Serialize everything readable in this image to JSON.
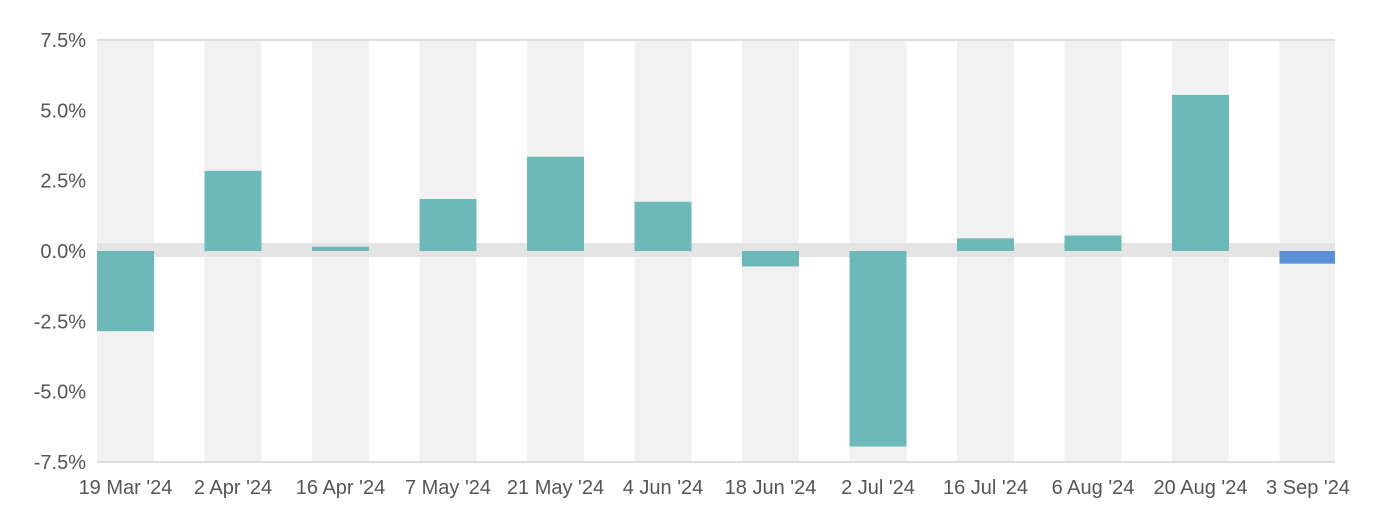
{
  "chart_data": {
    "type": "bar",
    "title": "",
    "xlabel": "",
    "ylabel": "",
    "categories": [
      "19 Mar '24",
      "2 Apr '24",
      "16 Apr '24",
      "7 May '24",
      "21 May '24",
      "4 Jun '24",
      "18 Jun '24",
      "2 Jul '24",
      "16 Jul '24",
      "6 Aug '24",
      "20 Aug '24",
      "3 Sep '24"
    ],
    "values": [
      -2.85,
      2.85,
      0.15,
      1.85,
      3.35,
      1.75,
      -0.55,
      -6.95,
      0.45,
      0.55,
      5.55,
      -0.45
    ],
    "ylim": [
      -7.5,
      7.5
    ],
    "yticks": [
      7.5,
      5.0,
      2.5,
      0.0,
      -2.5,
      -5.0,
      -7.5
    ],
    "ytick_labels": [
      "7.5%",
      "5.0%",
      "2.5%",
      "0.0%",
      "-2.5%",
      "-5.0%",
      "-7.5%"
    ],
    "grid": false,
    "colors": {
      "bar": "#6db8b9",
      "last_bar": "#5b8fd6",
      "band": "#f1f1f1",
      "zero_band": "#e4e4e4",
      "axis": "#dddddd",
      "text": "#555555"
    }
  }
}
